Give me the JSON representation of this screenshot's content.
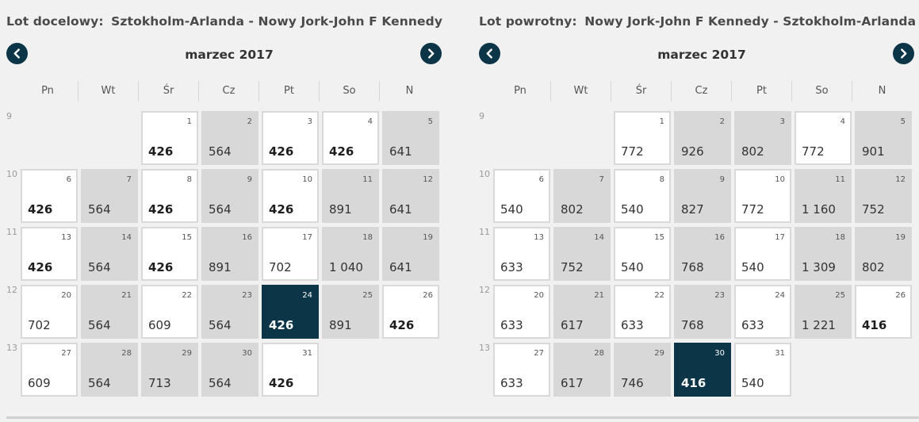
{
  "outbound": {
    "label": "Lot docelowy:",
    "route": "Sztokholm-Arlanda - Nowy Jork-John F Kennedy",
    "month": "marzec 2017",
    "weekdays": [
      "Pn",
      "Wt",
      "Śr",
      "Cz",
      "Pt",
      "So",
      "N"
    ],
    "weeks": [
      "9",
      "10",
      "11",
      "12",
      "13"
    ],
    "days": [
      {
        "day": "1",
        "price": "426",
        "style": "low"
      },
      {
        "day": "2",
        "price": "564",
        "style": "gray"
      },
      {
        "day": "3",
        "price": "426",
        "style": "low"
      },
      {
        "day": "4",
        "price": "426",
        "style": "low"
      },
      {
        "day": "5",
        "price": "641",
        "style": "gray"
      },
      {
        "day": "6",
        "price": "426",
        "style": "low"
      },
      {
        "day": "7",
        "price": "564",
        "style": "gray"
      },
      {
        "day": "8",
        "price": "426",
        "style": "low"
      },
      {
        "day": "9",
        "price": "564",
        "style": "gray"
      },
      {
        "day": "10",
        "price": "426",
        "style": "low"
      },
      {
        "day": "11",
        "price": "891",
        "style": "gray"
      },
      {
        "day": "12",
        "price": "641",
        "style": "gray"
      },
      {
        "day": "13",
        "price": "426",
        "style": "low"
      },
      {
        "day": "14",
        "price": "564",
        "style": "gray"
      },
      {
        "day": "15",
        "price": "426",
        "style": "low"
      },
      {
        "day": "16",
        "price": "891",
        "style": "gray"
      },
      {
        "day": "17",
        "price": "702",
        "style": "white"
      },
      {
        "day": "18",
        "price": "1 040",
        "style": "gray"
      },
      {
        "day": "19",
        "price": "641",
        "style": "gray"
      },
      {
        "day": "20",
        "price": "702",
        "style": "white"
      },
      {
        "day": "21",
        "price": "564",
        "style": "gray"
      },
      {
        "day": "22",
        "price": "609",
        "style": "white"
      },
      {
        "day": "23",
        "price": "564",
        "style": "gray"
      },
      {
        "day": "24",
        "price": "426",
        "style": "selected"
      },
      {
        "day": "25",
        "price": "891",
        "style": "gray"
      },
      {
        "day": "26",
        "price": "426",
        "style": "low"
      },
      {
        "day": "27",
        "price": "609",
        "style": "white"
      },
      {
        "day": "28",
        "price": "564",
        "style": "gray"
      },
      {
        "day": "29",
        "price": "713",
        "style": "gray"
      },
      {
        "day": "30",
        "price": "564",
        "style": "gray"
      },
      {
        "day": "31",
        "price": "426",
        "style": "low"
      }
    ]
  },
  "return": {
    "label": "Lot powrotny:",
    "route": "Nowy Jork-John F Kennedy - Sztokholm-Arlanda",
    "month": "marzec 2017",
    "weekdays": [
      "Pn",
      "Wt",
      "Śr",
      "Cz",
      "Pt",
      "So",
      "N"
    ],
    "weeks": [
      "9",
      "10",
      "11",
      "12",
      "13"
    ],
    "days": [
      {
        "day": "1",
        "price": "772",
        "style": "white"
      },
      {
        "day": "2",
        "price": "926",
        "style": "gray"
      },
      {
        "day": "3",
        "price": "802",
        "style": "gray"
      },
      {
        "day": "4",
        "price": "772",
        "style": "white"
      },
      {
        "day": "5",
        "price": "901",
        "style": "gray"
      },
      {
        "day": "6",
        "price": "540",
        "style": "white"
      },
      {
        "day": "7",
        "price": "802",
        "style": "gray"
      },
      {
        "day": "8",
        "price": "540",
        "style": "white"
      },
      {
        "day": "9",
        "price": "827",
        "style": "gray"
      },
      {
        "day": "10",
        "price": "772",
        "style": "white"
      },
      {
        "day": "11",
        "price": "1 160",
        "style": "gray"
      },
      {
        "day": "12",
        "price": "752",
        "style": "gray"
      },
      {
        "day": "13",
        "price": "633",
        "style": "white"
      },
      {
        "day": "14",
        "price": "752",
        "style": "gray"
      },
      {
        "day": "15",
        "price": "540",
        "style": "white"
      },
      {
        "day": "16",
        "price": "768",
        "style": "gray"
      },
      {
        "day": "17",
        "price": "540",
        "style": "white"
      },
      {
        "day": "18",
        "price": "1 309",
        "style": "gray"
      },
      {
        "day": "19",
        "price": "802",
        "style": "gray"
      },
      {
        "day": "20",
        "price": "633",
        "style": "white"
      },
      {
        "day": "21",
        "price": "617",
        "style": "gray"
      },
      {
        "day": "22",
        "price": "633",
        "style": "white"
      },
      {
        "day": "23",
        "price": "768",
        "style": "gray"
      },
      {
        "day": "24",
        "price": "633",
        "style": "white"
      },
      {
        "day": "25",
        "price": "1 221",
        "style": "gray"
      },
      {
        "day": "26",
        "price": "416",
        "style": "low"
      },
      {
        "day": "27",
        "price": "633",
        "style": "white"
      },
      {
        "day": "28",
        "price": "617",
        "style": "gray"
      },
      {
        "day": "29",
        "price": "746",
        "style": "gray"
      },
      {
        "day": "30",
        "price": "416",
        "style": "selected"
      },
      {
        "day": "31",
        "price": "540",
        "style": "white"
      }
    ]
  },
  "icons": {
    "prev": "chevron-left-icon",
    "next": "chevron-right-icon"
  },
  "colors": {
    "accent": "#0c3548",
    "gray_cell": "#d8d8d8",
    "background": "#f1f1f1"
  }
}
